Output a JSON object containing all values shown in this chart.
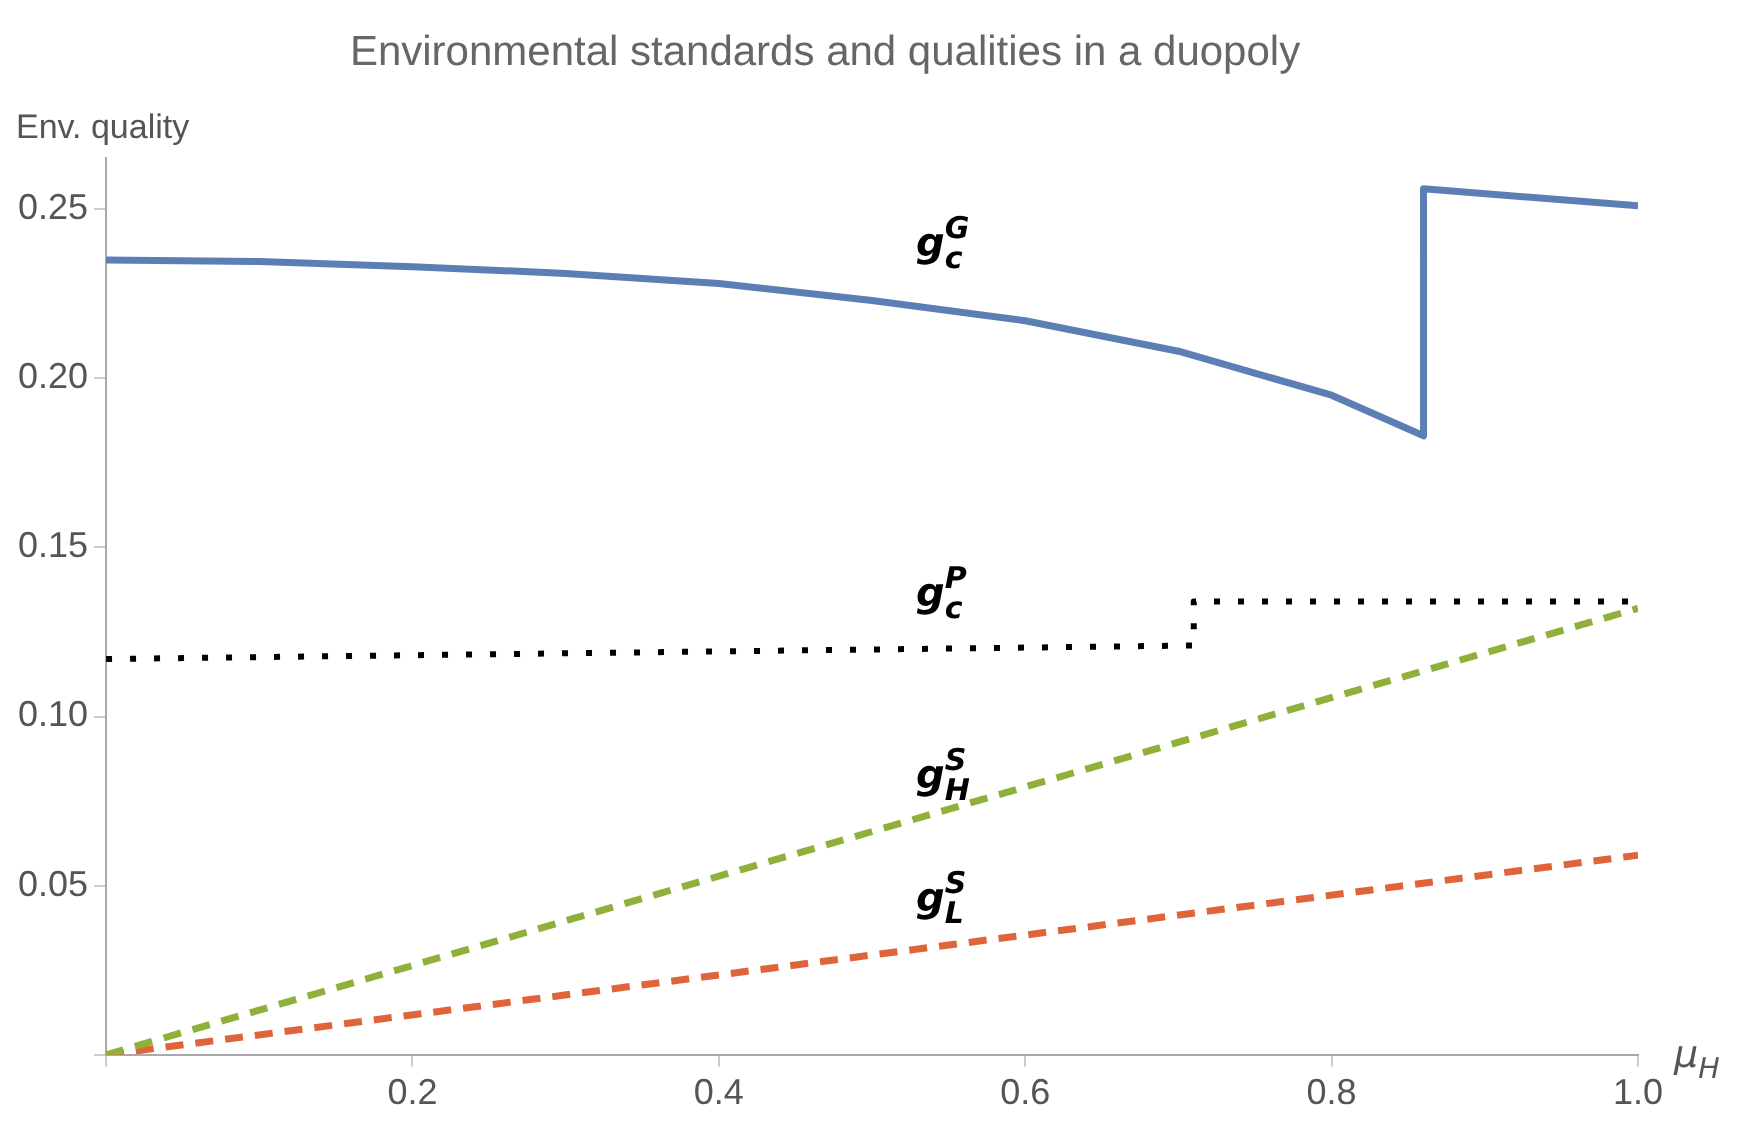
{
  "chart_data": {
    "type": "line",
    "title": "Environmental standards and qualities in a duopoly",
    "xlabel": "μ$_{H}$",
    "ylabel": "Env. quality",
    "xlim": [
      0,
      1.0
    ],
    "xticks": [
      {
        "value": 0,
        "label": null
      },
      0.2,
      0.4,
      0.6,
      0.8,
      {
        "value": 1,
        "label": "1.0"
      }
    ],
    "ylim": [
      0,
      0.265
    ],
    "yticks": [
      {
        "value": 0,
        "label": null
      },
      0.05,
      {
        "value": 0.1,
        "label": "0.10"
      },
      0.15,
      {
        "value": 0.2,
        "label": "0.20"
      },
      0.25
    ],
    "grid": false,
    "legend": false,
    "marker": "none",
    "series": [
      {
        "name": "g$^{G}$$_{c}$",
        "color": "#5b7fb5",
        "line_style": "solid",
        "x": [
          0,
          0.1,
          0.2,
          0.3,
          0.4,
          0.5,
          0.6,
          0.7,
          0.8,
          0.86,
          0.86,
          1.0
        ],
        "values": [
          0.235,
          0.2345,
          0.233,
          0.231,
          0.228,
          0.223,
          0.217,
          0.208,
          0.195,
          0.183,
          0.256,
          0.251
        ]
      },
      {
        "name": "g$^{P}$$_{c}$",
        "color": "#000000",
        "line_style": "dotted",
        "x": [
          0,
          0.71,
          0.71,
          1.0
        ],
        "values": [
          0.117,
          0.121,
          0.134,
          0.134
        ]
      },
      {
        "name": "g$^{S}$$_{H}$",
        "color": "#8fb03a",
        "line_style": "dashed",
        "x": [
          0,
          1.0
        ],
        "values": [
          0,
          0.132
        ]
      },
      {
        "name": "g$^{S}$$_{L}$",
        "color": "#e0643a",
        "line_style": "dashed",
        "x": [
          0,
          1.0
        ],
        "values": [
          0,
          0.059
        ]
      }
    ]
  }
}
